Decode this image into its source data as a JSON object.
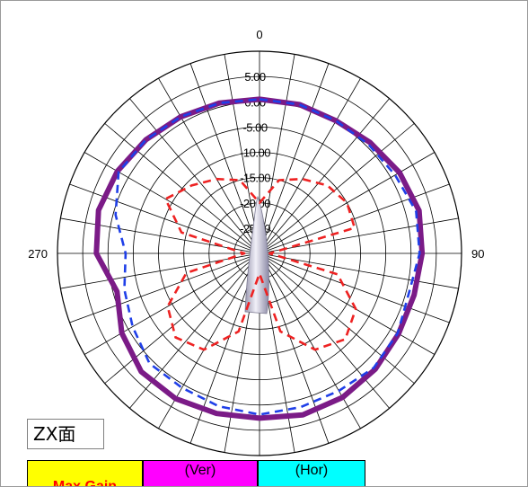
{
  "chart_data": {
    "type": "polar-line",
    "plane_label": "ZX面",
    "angle_labels": {
      "top": "0",
      "right": "90",
      "left": "270"
    },
    "radial_ticks": [
      "5.00",
      "0.00",
      "-5.00",
      "-10.00",
      "-15.00",
      "-20.00",
      "-25.00"
    ],
    "rlim": [
      -30,
      10
    ],
    "grid": true,
    "legend": [
      {
        "label": "Max Gain",
        "bg": "#ffff00",
        "color": "#ff0000"
      },
      {
        "label": "(Ver)",
        "bg": "#ff00ff",
        "color": "#000000"
      },
      {
        "label": "(Hor)",
        "bg": "#00ffff",
        "color": "#000000"
      }
    ],
    "series": [
      {
        "color": "#7b1b87",
        "style": "solid",
        "angles": [
          0,
          15,
          30,
          45,
          60,
          75,
          90,
          105,
          120,
          135,
          150,
          165,
          180,
          195,
          210,
          225,
          240,
          255,
          270,
          285,
          300,
          315,
          330,
          345
        ],
        "values": [
          0.5,
          0.5,
          0.3,
          1.0,
          2.0,
          2.7,
          2.2,
          1.7,
          1.8,
          2.4,
          2.9,
          3.1,
          2.6,
          2.8,
          3.2,
          3.1,
          1.5,
          -0.8,
          2.3,
          3.0,
          2.5,
          1.8,
          1.2,
          0.8
        ]
      },
      {
        "color": "#1f3fe8",
        "style": "dashed",
        "angles": [
          0,
          15,
          30,
          45,
          60,
          75,
          90,
          105,
          120,
          135,
          150,
          165,
          180,
          195,
          210,
          225,
          240,
          255,
          270,
          285,
          300,
          315,
          330,
          345
        ],
        "values": [
          0.5,
          0.5,
          0.3,
          0.5,
          1.0,
          2.1,
          1.7,
          0.6,
          1.6,
          2.0,
          1.4,
          1.5,
          1.9,
          1.3,
          0.7,
          0.8,
          -1.0,
          -2.3,
          -3.5,
          -0.5,
          2.2,
          1.8,
          1.2,
          0.8
        ]
      },
      {
        "color": "#ee2222",
        "style": "dashed",
        "angles": [
          0,
          15,
          30,
          45,
          60,
          75,
          90,
          105,
          120,
          135,
          150,
          165,
          180,
          195,
          210,
          225,
          240,
          255,
          270,
          285,
          300,
          315,
          330,
          345
        ],
        "values": [
          -20.0,
          -15.0,
          -13.0,
          -11.0,
          -10.0,
          -10.5,
          -28.0,
          -14.0,
          -8.0,
          -6.0,
          -8.0,
          -14.0,
          -26.0,
          -14.0,
          -8.0,
          -6.5,
          -9.0,
          -15.0,
          -27.0,
          -14.0,
          -8.5,
          -11.0,
          -13.0,
          -15.0
        ]
      }
    ]
  }
}
